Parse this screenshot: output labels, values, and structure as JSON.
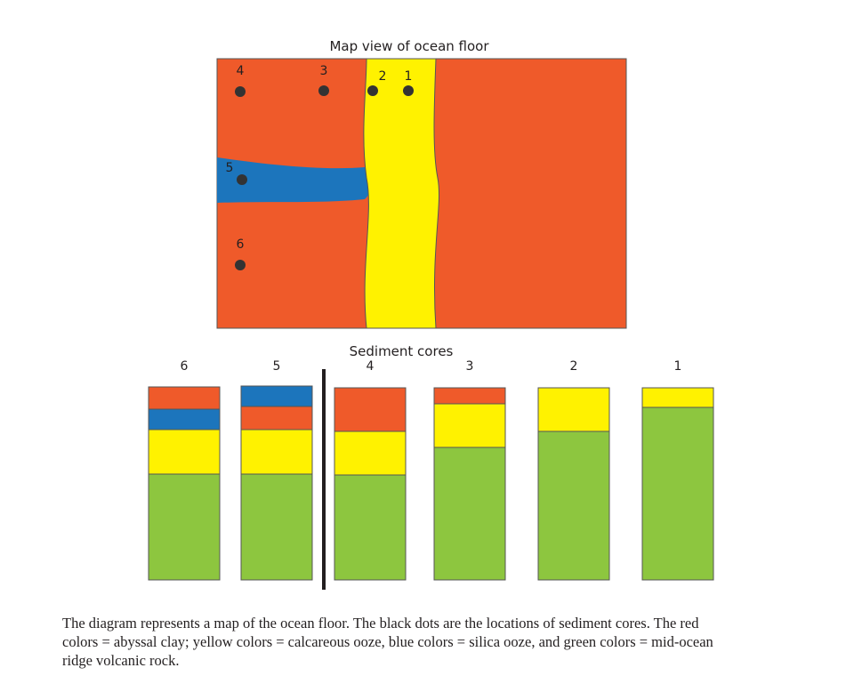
{
  "map": {
    "title": "Map view of ocean floor",
    "dots": [
      {
        "label": "1"
      },
      {
        "label": "2"
      },
      {
        "label": "3"
      },
      {
        "label": "4"
      },
      {
        "label": "5"
      },
      {
        "label": "6"
      }
    ]
  },
  "cores": {
    "title": "Sediment cores",
    "labels": [
      "6",
      "5",
      "4",
      "3",
      "2",
      "1"
    ]
  },
  "caption": {
    "lines": [
      "The diagram represents a map of the ocean floor. The black dots are the locations of sediment cores. The red",
      "colors = abyssal clay; yellow colors = calcareous ooze, blue colors = silica ooze, and green colors = mid-ocean",
      "ridge volcanic rock."
    ]
  }
}
